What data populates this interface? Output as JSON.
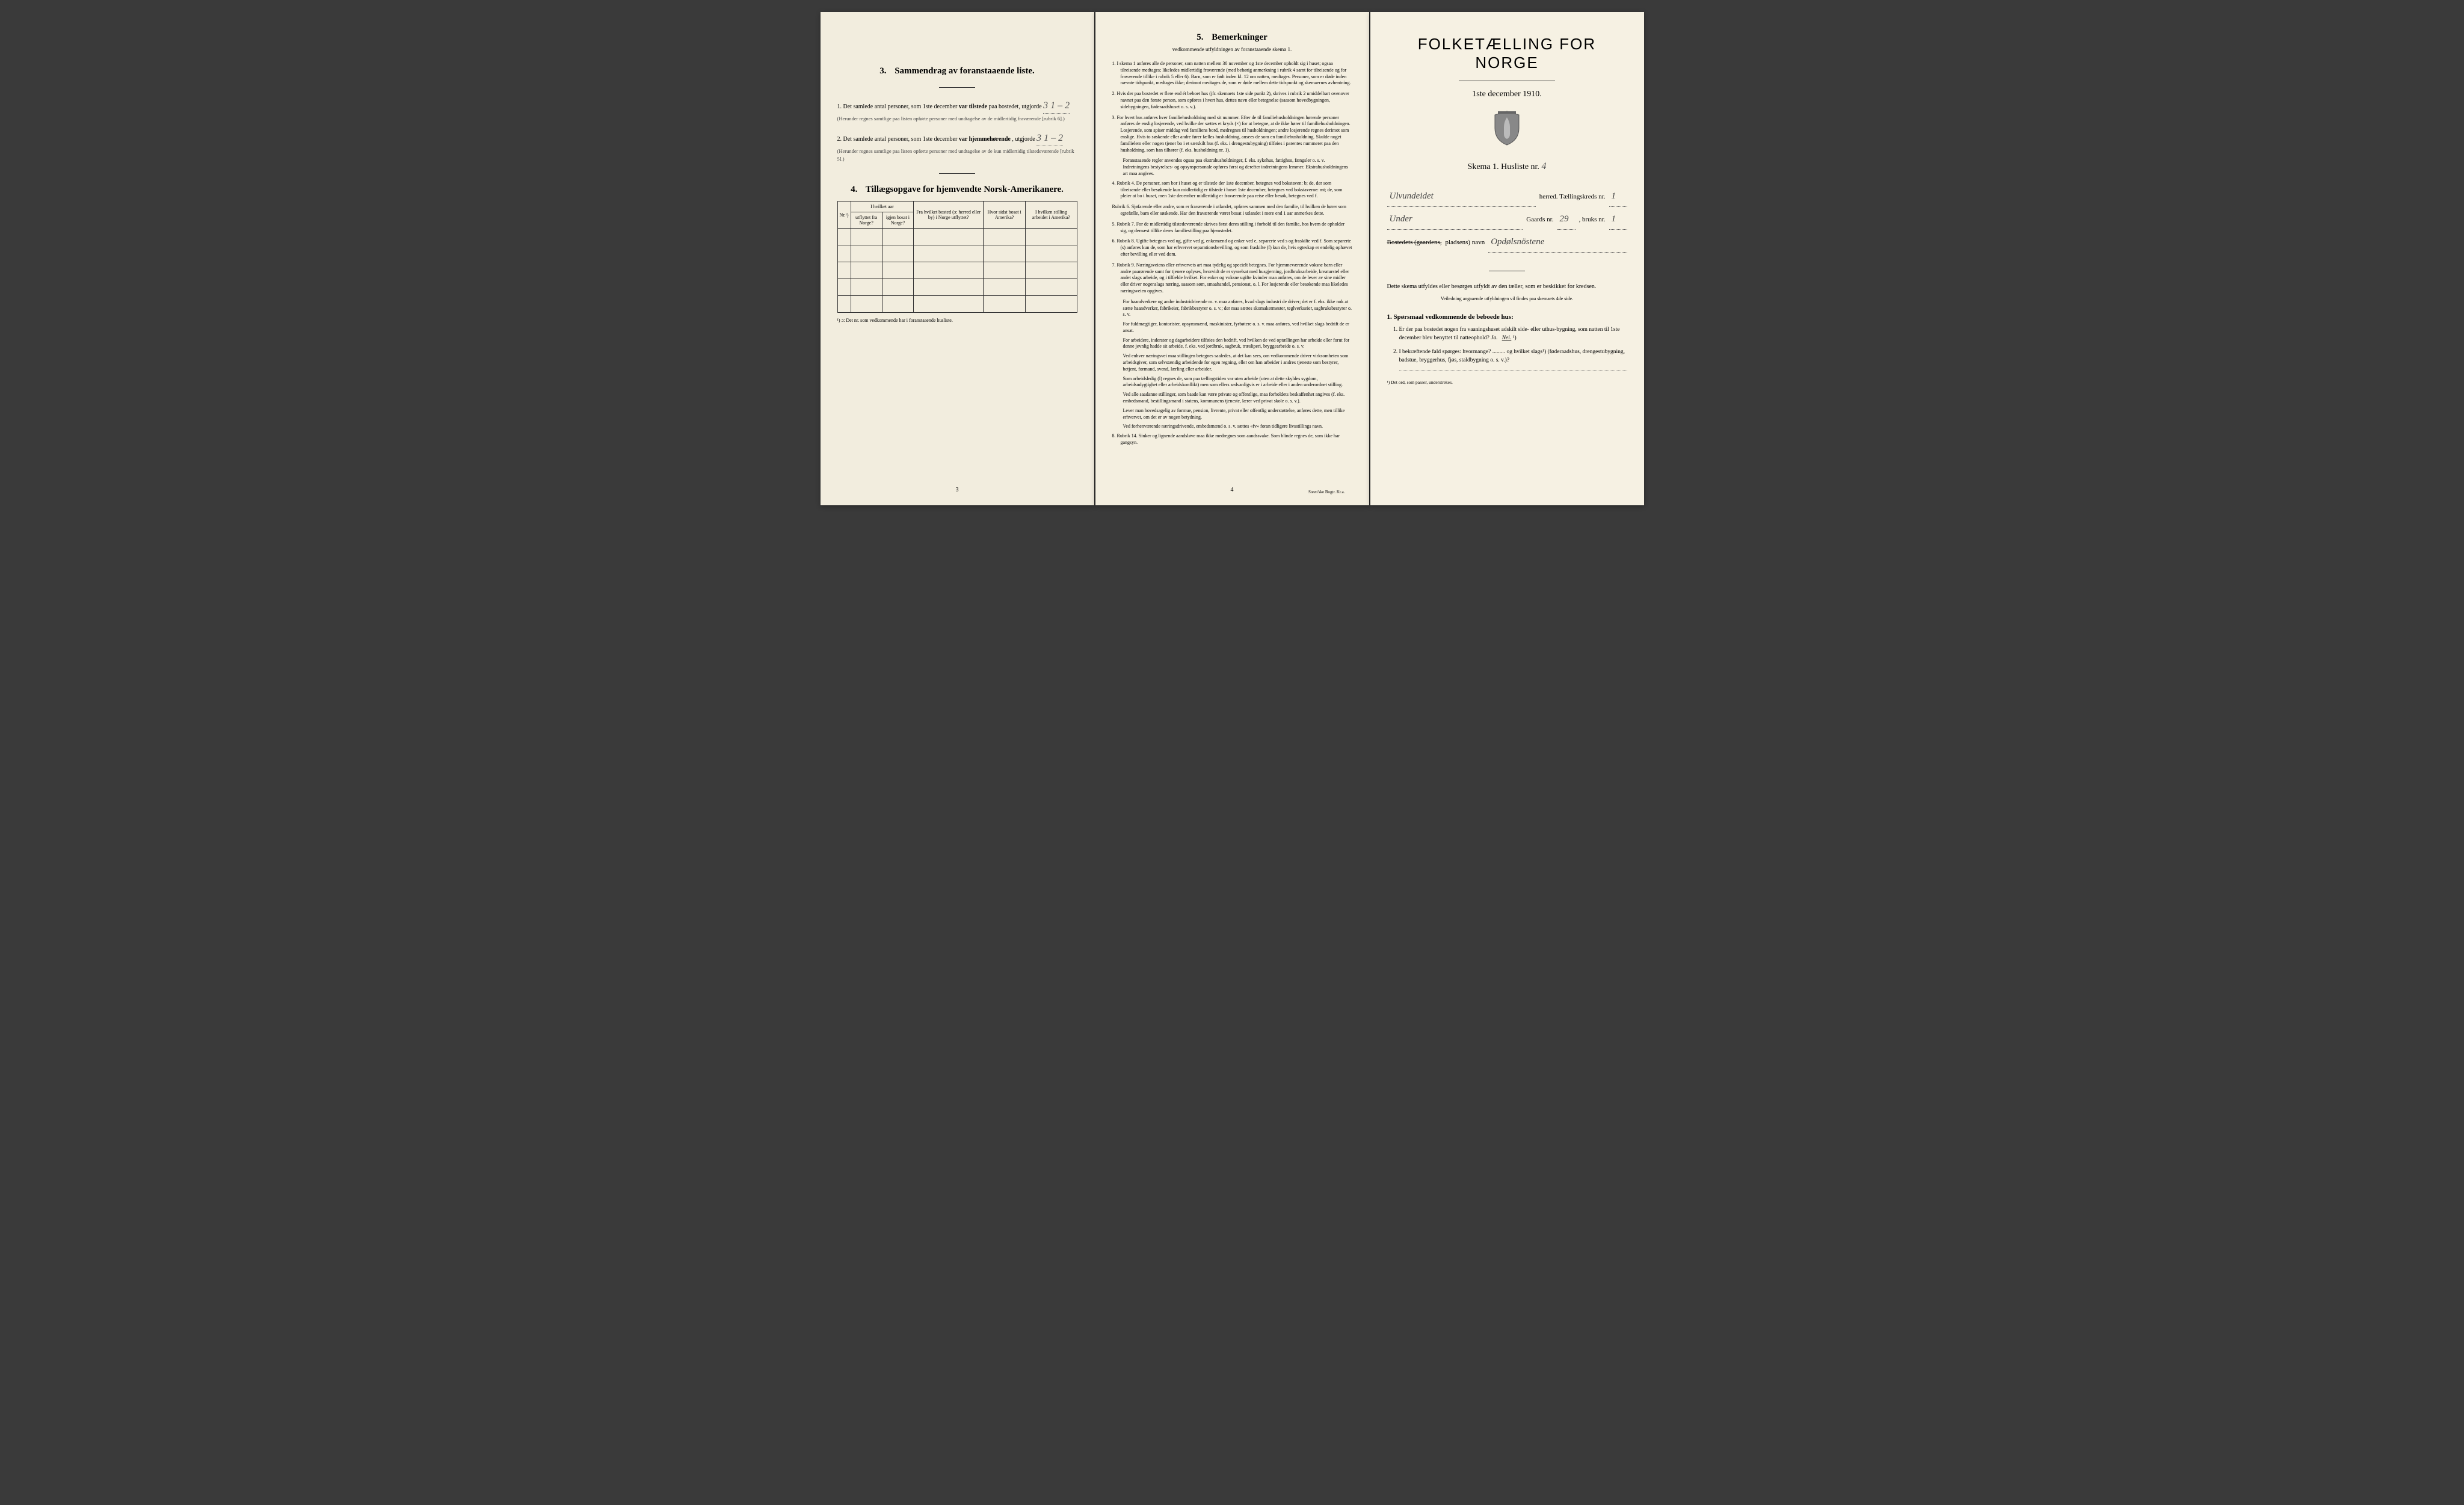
{
  "page3": {
    "section3": {
      "num": "3.",
      "title": "Sammendrag av foranstaaende liste.",
      "q1_lead": "1. Det samlede antal personer, som 1ste december ",
      "q1_bold": "var tilstede",
      "q1_tail": " paa bostedet, utgjorde ",
      "q1_value": "3   1 – 2",
      "q1_paren": "(Herunder regnes samtlige paa listen opførte personer med undtagelse av de midlertidig fraværende [rubrik 6].)",
      "q2_lead": "2. Det samlede antal personer, som 1ste december ",
      "q2_bold": "var hjemmehørende",
      "q2_tail": ", utgjorde ",
      "q2_value": "3   1 – 2",
      "q2_paren": "(Herunder regnes samtlige paa listen opførte personer med undtagelse av de kun midlertidig tilstedeværende [rubrik 5].)"
    },
    "section4": {
      "num": "4.",
      "title": "Tillægsopgave for hjemvendte Norsk-Amerikanere.",
      "headers": {
        "nr": "Nr.¹)",
        "col1a": "I hvilket aar",
        "col1b": "utflyttet fra Norge?",
        "col1c": "igjen bosat i Norge?",
        "col2": "Fra hvilket bosted (ɔ: herred eller by) i Norge utflyttet?",
        "col3": "Hvor sidst bosat i Amerika?",
        "col4": "I hvilken stilling arbeidet i Amerika?"
      },
      "footnote": "¹) ɔ: Det nr. som vedkommende har i foranstaaende husliste."
    },
    "page_num": "3"
  },
  "page4": {
    "title_num": "5.",
    "title": "Bemerkninger",
    "subtitle": "vedkommende utfyldningen av foranstaaende skema 1.",
    "items": [
      "1. I skema 1 anføres alle de personer, som natten mellem 30 november og 1ste december opholdt sig i huset; ogsaa tilreisende medtages; likeledes midlertidig fraværende (med behørig anmerkning i rubrik 4 samt for tilreisende og for fraværende tillike i rubrik 5 eller 6). Barn, som er født inden kl. 12 om natten, medtages. Personer, som er døde inden nævnte tidspunkt, medtages ikke; derimot medtages de, som er døde mellem dette tidspunkt og skemaernes avhentning.",
      "2. Hvis der paa bostedet er flere end ét beboet hus (jfr. skemaets 1ste side punkt 2), skrives i rubrik 2 umiddelbart ovenover navnet paa den første person, som opføres i hvert hus, dettes navn eller betegnelse (saasom hovedbygningen, sidebygningen, føderaadshuset o. s. v.).",
      "3. For hvert hus anføres hver familiehusholdning med sit nummer. Efter de til familiehusholdningen hørende personer anføres de enslig losjerende, ved hvilke der sættes et kryds (×) for at betegne, at de ikke hører til familiehusholdningen. Losjerende, som spiser middag ved familiens bord, medregnes til husholdningen; andre losjerende regnes derimot som enslige. Hvis to søskende eller andre fører fælles husholdning, ansees de som en familiehusholdning. Skulde noget familielem eller nogen tjener bo i et særskilt hus (f. eks. i drengestubygning) tilføies i parentes nummeret paa den husholdning, som han tilhører (f. eks. husholdning nr. 1).",
      "Foranstaaende regler anvendes ogsaa paa ekstrahusholdninger, f. eks. sykehus, fattighus, fængsler o. s. v. Indretningens bestyrelses- og opsynspersonale opføres først og derefter indretningens lemmer. Ekstrahusholdningens art maa angives.",
      "4. Rubrik 4. De personer, som bor i huset og er tilstede der 1ste december, betegnes ved bokstaven: b; de, der som tilreisende eller besøkende kun midlertidig er tilstede i huset 1ste december, betegnes ved bokstaverne: mt; de, som pleier at bo i huset, men 1ste december midlertidig er fraværende paa reise eller besøk, betegnes ved f.",
      "Rubrik 6. Sjøfarende eller andre, som er fraværende i utlandet, opføres sammen med den familie, til hvilken de hører som egtefælle, barn eller søskende. Har den fraværende været bosat i utlandet i mere end 1 aar anmerkes dette.",
      "5. Rubrik 7. For de midlertidig tilstedeværende skrives først deres stilling i forhold til den familie, hos hvem de opholder sig, og dernæst tillike deres familiestilling paa hjemstedet.",
      "6. Rubrik 8. Ugifte betegnes ved ug, gifte ved g, enkemænd og enker ved e, separerte ved s og fraskilte ved f. Som separerte (s) anføres kun de, som har erhvervet separationsbevilling, og som fraskilte (f) kun de, hvis egteskap er endelig ophævet efter bevilling eller ved dom.",
      "7. Rubrik 9. Næringsveiens eller erhvervets art maa tydelig og specielt betegnes. For hjemmeværende voksne barn eller andre paarørende samt for tjenere oplyses, hvorvidt de er sysselsat med husgjerning, jordbruksarbeide, kreaturstel eller andet slags arbeide, og i tilfælde hvilket. For enker og voksne ugifte kvinder maa anføres, om de lever av sine midler eller driver nogenslags næring, saasom søm, smaahandel, pensionat, o. l. For losjerende eller besøkende maa likeledes næringsveien opgives.",
      "For haandverkere og andre industridrivende m. v. maa anføres, hvad slags industri de driver; det er f. eks. ikke nok at sætte haandverker, fabrikeier, fabrikbestyrer o. s. v.; der maa sættes skomakermester, teglverkseier, sagbruksbestyrer o. s. v.",
      "For fuldmægtiger, kontorister, opsynsmænd, maskinister, fyrbøtere o. s. v. maa anføres, ved hvilket slags bedrift de er ansat.",
      "For arbeidere, inderster og dagarbeidere tilføies den bedrift, ved hvilken de ved optællingen har arbeide eller forut for denne jevnlig hadde sit arbeide, f. eks. ved jordbruk, sagbruk, træsliperi, bryggearbeide o. s. v.",
      "Ved enhver næringsvei maa stillingen betegnes saaledes, at det kan sees, om vedkommende driver virksomheten som arbeidsgiver, som selvstændig arbeidende for egen regning, eller om han arbeider i andres tjeneste som bestyrer, betjent, formand, svend, lærling eller arbeider.",
      "Som arbeidsledig (l) regnes de, som paa tællingstiden var uten arbeide (uten at dette skyldes sygdom, arbeidsudygtighet eller arbeidskonflikt) men som ellers sedvanligvis er i arbeide eller i anden underordnet stilling.",
      "Ved alle saadanne stillinger, som baade kan være private og offentlige, maa forholdets beskaffenhet angives (f. eks. embedsmand, bestillingsmand i statens, kommunens tjeneste, lærer ved privat skole o. s. v.).",
      "Lever man hovedsagelig av formue, pension, livrente, privat eller offentlig understøttelse, anføres dette, men tillike erhvervet, om det er av nogen betydning.",
      "Ved forhenværende næringsdrivende, embedsmænd o. s. v. sættes «fv» foran tidligere livsstillings navn.",
      "8. Rubrik 14. Sinker og lignende aandsløve maa ikke medregnes som aandssvake. Som blinde regnes de, som ikke har gangsyn."
    ],
    "page_num": "4",
    "printer": "Steen'ske Bogtr.  Kr.a."
  },
  "pageR": {
    "main_title": "FOLKETÆLLING FOR NORGE",
    "date": "1ste december 1910.",
    "skema": "Skema 1.  Husliste nr.",
    "skema_val": "4",
    "herred_val": "Ulvundeidet",
    "herred_lbl": "herred.  Tællingskreds nr.",
    "kreds_val": "1",
    "line2_val": "Under",
    "gaards_lbl": "Gaards nr.",
    "gaards_val": "29",
    "bruks_lbl": ", bruks nr.",
    "bruks_val": "1",
    "line3_struck": "Bostedets (gaardens,",
    "line3_lbl": " pladsens) navn",
    "line3_val": "Opdølsnöstene",
    "instr1": "Dette skema utfyldes eller besørges utfyldt av den tæller, som er beskikket for kredsen.",
    "instr2": "Veiledning angaaende utfyldningen vil findes paa skemaets 4de side.",
    "q_heading": "1. Spørsmaal vedkommende de beboede hus:",
    "q1": "Er der paa bostedet nogen fra vaaningshuset adskilt side- eller uthus-bygning, som natten til 1ste december blev benyttet til natteophold?    ",
    "q1_ja": "Ja.",
    "q1_nei": "Nei.",
    "q1_sup": "¹)",
    "q2": "I bekræftende fald spørges: hvormange? ......... og hvilket slags¹) (føderaadshus, drengestubygning, badstue, bryggerhus, fjøs, staldbygning o. s. v.)?",
    "foot": "¹) Det ord, som passer, understrekes."
  },
  "colors": {
    "paper": "#f5f0e1",
    "ink": "#2a2a28",
    "pencil": "#6a6a60"
  }
}
